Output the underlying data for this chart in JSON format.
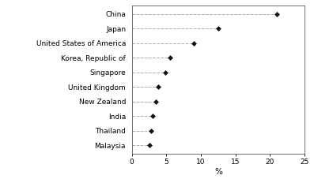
{
  "countries": [
    "China",
    "Japan",
    "United States of America",
    "Korea, Republic of",
    "Singapore",
    "United Kingdom",
    "New Zealand",
    "India",
    "Thailand",
    "Malaysia"
  ],
  "values": [
    21.0,
    12.5,
    9.0,
    5.5,
    4.8,
    3.8,
    3.5,
    3.0,
    2.8,
    2.5
  ],
  "xlim": [
    0,
    25
  ],
  "xticks": [
    0,
    5,
    10,
    15,
    20,
    25
  ],
  "xlabel": "%",
  "marker": "D",
  "marker_color": "#111111",
  "marker_size": 3.5,
  "line_color": "#aaaaaa",
  "line_style": "--",
  "line_width": 0.7,
  "background_color": "#ffffff",
  "tick_fontsize": 6.5,
  "xlabel_fontsize": 7.5,
  "spine_color": "#555555"
}
